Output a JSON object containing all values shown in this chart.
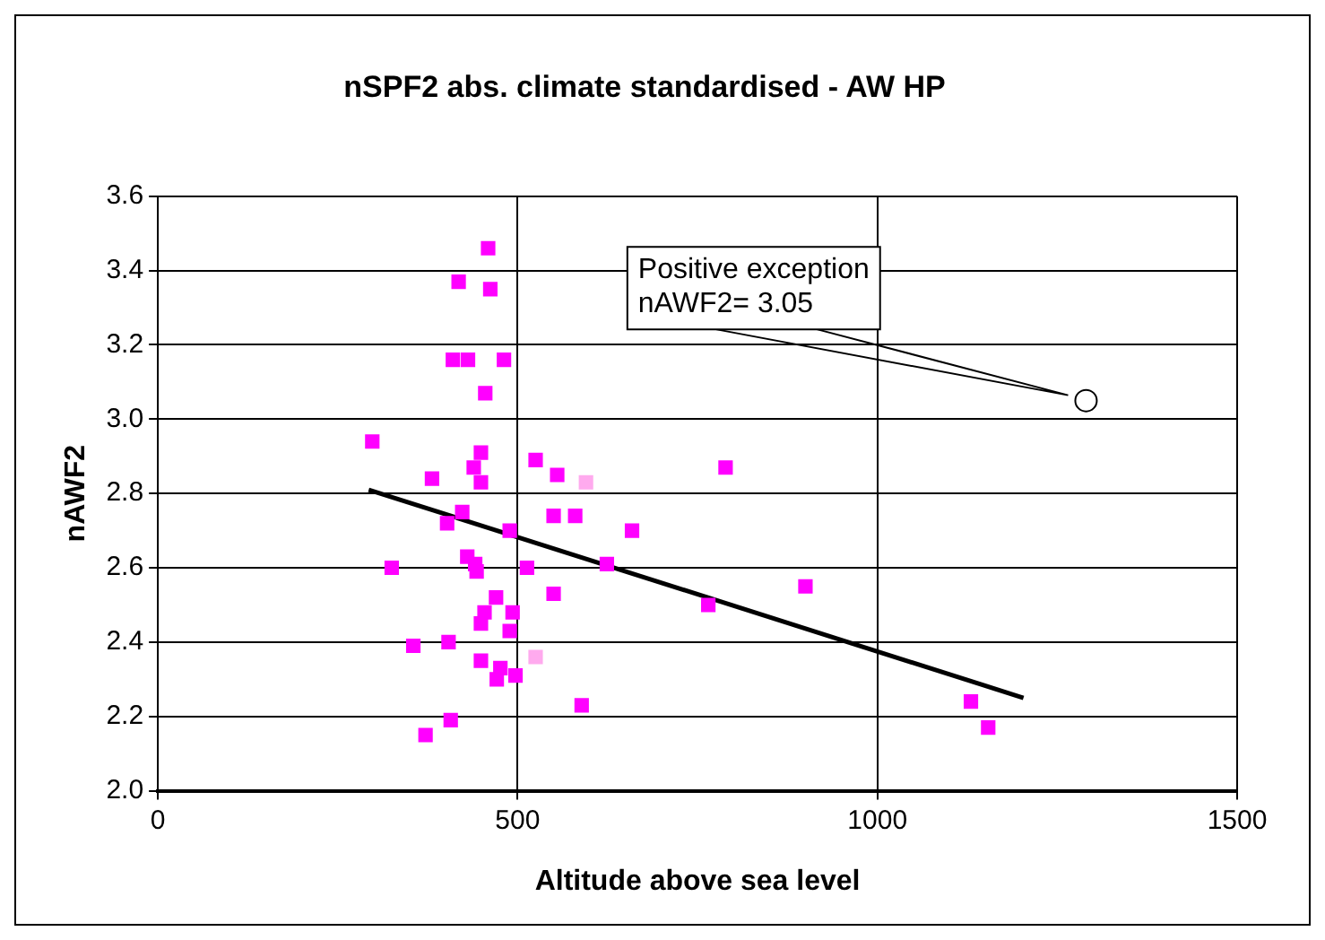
{
  "chart_data": {
    "type": "scatter",
    "title": "nSPF2 abs. climate standardised - AW HP",
    "xlabel": "Altitude above sea level",
    "ylabel": "nAWF2",
    "xlim": [
      0,
      1500
    ],
    "xticks": [
      0,
      500,
      1000,
      1500
    ],
    "ylim": [
      2.0,
      3.6
    ],
    "yticks": [
      {
        "value": 2,
        "label": "2.0"
      },
      2.2,
      2.4,
      2.6,
      2.8,
      {
        "value": 3,
        "label": "3.0"
      },
      3.2,
      3.4,
      3.6
    ],
    "grid": true,
    "legend": false,
    "series": [
      {
        "marker": "square",
        "color": "#ff00ff",
        "x": [
          459,
          418,
          462,
          410,
          431,
          481,
          455,
          298,
          449,
          439,
          449,
          381,
          525,
          555,
          789,
          423,
          402,
          550,
          580,
          489,
          659,
          325,
          430,
          441,
          443,
          513,
          624,
          550,
          470,
          454,
          493,
          449,
          489,
          765,
          900,
          355,
          404,
          449,
          476,
          497,
          471,
          589,
          407,
          372,
          1130,
          1154
        ],
        "values": [
          3.46,
          3.37,
          3.35,
          3.16,
          3.16,
          3.16,
          3.07,
          2.94,
          2.91,
          2.87,
          2.83,
          2.84,
          2.89,
          2.85,
          2.87,
          2.75,
          2.72,
          2.74,
          2.74,
          2.7,
          2.7,
          2.6,
          2.63,
          2.61,
          2.59,
          2.6,
          2.61,
          2.53,
          2.52,
          2.48,
          2.48,
          2.45,
          2.43,
          2.5,
          2.55,
          2.39,
          2.4,
          2.35,
          2.33,
          2.31,
          2.3,
          2.23,
          2.19,
          2.15,
          2.24,
          2.17
        ]
      },
      {
        "marker": "square",
        "color": "#ffaaee",
        "x": [
          595,
          525
        ],
        "values": [
          2.83,
          2.36
        ]
      },
      {
        "marker": "circle",
        "color": "#000000",
        "x": [
          1290
        ],
        "values": [
          3.05
        ]
      },
      {
        "type": "line",
        "marker": "none",
        "color": "#000000",
        "x": [
          293,
          1203
        ],
        "values": [
          2.81,
          2.25
        ]
      }
    ],
    "annotations": [
      "Positive exception\nnAWF2= 3.05"
    ]
  }
}
